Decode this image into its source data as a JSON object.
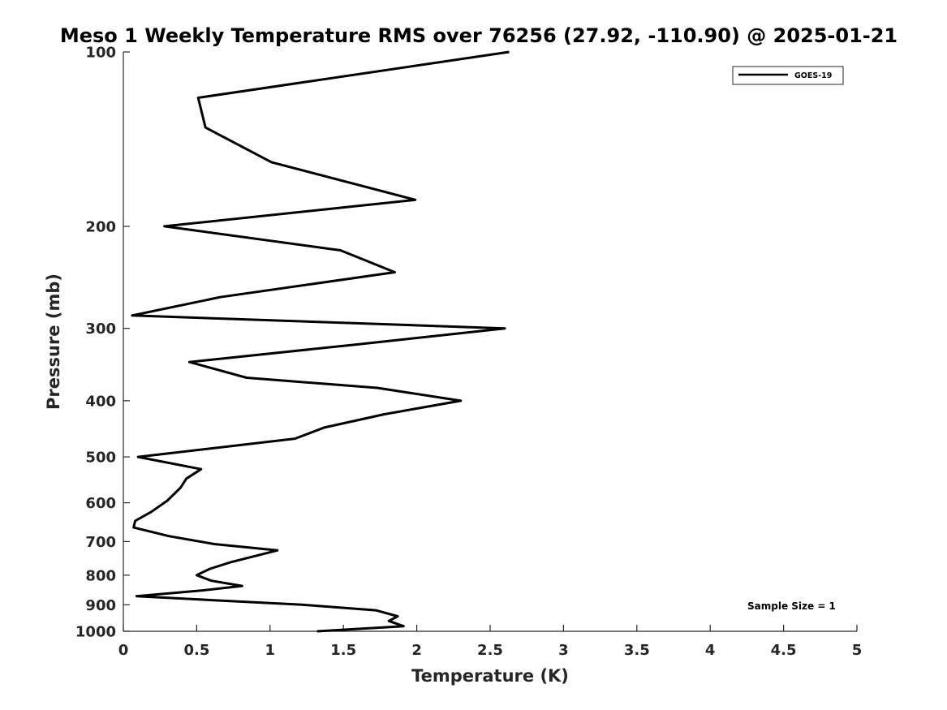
{
  "chart_data": {
    "type": "line",
    "title": "Meso 1 Weekly Temperature RMS over 76256 (27.92, -110.90) @ 2025-01-21",
    "xlabel": "Temperature (K)",
    "ylabel": "Pressure (mb)",
    "xlim": [
      0,
      5
    ],
    "ylim": [
      100,
      1000
    ],
    "yscale": "log",
    "y_reversed": true,
    "grid": false,
    "x_ticks": [
      0,
      0.5,
      1,
      1.5,
      2,
      2.5,
      3,
      3.5,
      4,
      4.5,
      5
    ],
    "x_tick_labels": [
      "0",
      "0.5",
      "1",
      "1.5",
      "2",
      "2.5",
      "3",
      "3.5",
      "4",
      "4.5",
      "5"
    ],
    "y_ticks": [
      100,
      200,
      300,
      400,
      500,
      600,
      700,
      800,
      900,
      1000
    ],
    "y_tick_labels": [
      "100",
      "200",
      "300",
      "400",
      "500",
      "600",
      "700",
      "800",
      "900",
      "1000"
    ],
    "legend": {
      "location": "top-right",
      "entries": [
        "GOES-19"
      ]
    },
    "annotation": "Sample Size = 1",
    "series": [
      {
        "name": "GOES-19",
        "color": "#000000",
        "x": [
          2.63,
          0.51,
          0.56,
          1.01,
          1.99,
          0.28,
          1.48,
          1.85,
          0.66,
          0.06,
          2.6,
          1.58,
          0.45,
          0.84,
          1.73,
          2.3,
          1.78,
          1.37,
          1.17,
          0.1,
          0.53,
          0.43,
          0.39,
          0.3,
          0.19,
          0.08,
          0.07,
          0.31,
          0.62,
          1.05,
          0.73,
          0.59,
          0.5,
          0.6,
          0.81,
          0.54,
          0.09,
          1.22,
          1.72,
          1.87,
          1.81,
          1.91,
          1.32
        ],
        "y": [
          100,
          120,
          135,
          155,
          180,
          200,
          220,
          240,
          265,
          285,
          300,
          320,
          343,
          365,
          380,
          400,
          422,
          445,
          465,
          500,
          525,
          545,
          565,
          595,
          622,
          645,
          662,
          685,
          707,
          725,
          760,
          780,
          800,
          818,
          835,
          850,
          870,
          900,
          920,
          942,
          960,
          980,
          1000
        ]
      }
    ]
  }
}
